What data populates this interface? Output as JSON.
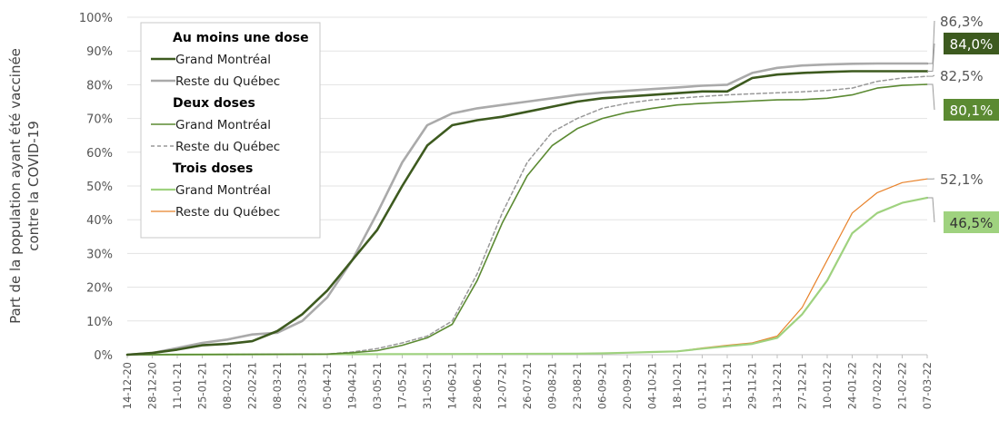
{
  "chart_data": {
    "type": "line",
    "ylabel_lines": [
      "Part de la population ayant été vaccinée",
      "contre la COVID-19"
    ],
    "yticks": [
      "0%",
      "10%",
      "20%",
      "30%",
      "40%",
      "50%",
      "60%",
      "70%",
      "80%",
      "90%",
      "100%"
    ],
    "ylim": [
      0,
      100
    ],
    "x_labels": [
      "14-12-20",
      "28-12-20",
      "11-01-21",
      "25-01-21",
      "08-02-21",
      "22-02-21",
      "08-03-21",
      "22-03-21",
      "05-04-21",
      "19-04-21",
      "03-05-21",
      "17-05-21",
      "31-05-21",
      "14-06-21",
      "28-06-21",
      "12-07-21",
      "26-07-21",
      "09-08-21",
      "23-08-21",
      "06-09-21",
      "20-09-21",
      "04-10-21",
      "18-10-21",
      "01-11-21",
      "15-11-21",
      "29-11-21",
      "13-12-21",
      "27-12-21",
      "10-01-22",
      "24-01-22",
      "07-02-22",
      "21-02-22",
      "07-03-22"
    ],
    "grid": true,
    "legend": {
      "groups": [
        {
          "title": "Au moins une dose",
          "items": [
            {
              "label": "Grand Montréal",
              "series": 0
            },
            {
              "label": "Reste du Québec",
              "series": 1
            }
          ]
        },
        {
          "title": "Deux doses",
          "items": [
            {
              "label": "Grand Montréal",
              "series": 2
            },
            {
              "label": "Reste du Québec",
              "series": 3
            }
          ]
        },
        {
          "title": "Trois doses",
          "items": [
            {
              "label": "Grand Montréal",
              "series": 4
            },
            {
              "label": "Reste du Québec",
              "series": 5
            }
          ]
        }
      ]
    },
    "series": [
      {
        "group": "Au moins une dose",
        "region": "Grand Montréal",
        "color": "#3d5a1f",
        "width": 2.6,
        "dash": "",
        "end_label": "84,0%",
        "end_boxed": true,
        "end_text_color": "#ffffff",
        "points": [
          [
            0,
            0
          ],
          [
            1,
            0.5
          ],
          [
            2,
            1.5
          ],
          [
            3,
            2.8
          ],
          [
            4,
            3.2
          ],
          [
            5,
            4
          ],
          [
            6,
            7
          ],
          [
            7,
            12
          ],
          [
            8,
            19
          ],
          [
            9,
            28
          ],
          [
            10,
            37
          ],
          [
            11,
            50
          ],
          [
            12,
            62
          ],
          [
            13,
            68
          ],
          [
            14,
            69.5
          ],
          [
            15,
            70.5
          ],
          [
            16,
            72
          ],
          [
            17,
            73.5
          ],
          [
            18,
            75
          ],
          [
            19,
            76
          ],
          [
            20,
            76.5
          ],
          [
            21,
            77
          ],
          [
            22,
            77.5
          ],
          [
            23,
            78
          ],
          [
            24,
            78
          ],
          [
            25,
            82
          ],
          [
            26,
            83
          ],
          [
            27,
            83.5
          ],
          [
            28,
            83.8
          ],
          [
            29,
            84
          ],
          [
            30,
            84
          ],
          [
            31,
            84
          ],
          [
            32,
            84
          ]
        ]
      },
      {
        "group": "Au moins une dose",
        "region": "Reste du Québec",
        "color": "#aaaaaa",
        "width": 2.6,
        "dash": "",
        "end_label": "86,3%",
        "end_boxed": false,
        "end_text_color": "#555555",
        "points": [
          [
            0,
            0
          ],
          [
            1,
            0.5
          ],
          [
            2,
            2
          ],
          [
            3,
            3.5
          ],
          [
            4,
            4.5
          ],
          [
            5,
            6
          ],
          [
            6,
            6.5
          ],
          [
            7,
            10
          ],
          [
            8,
            17
          ],
          [
            9,
            28
          ],
          [
            10,
            42
          ],
          [
            11,
            57
          ],
          [
            12,
            68
          ],
          [
            13,
            71.5
          ],
          [
            14,
            73
          ],
          [
            15,
            74
          ],
          [
            16,
            75
          ],
          [
            17,
            76
          ],
          [
            18,
            77
          ],
          [
            19,
            77.7
          ],
          [
            20,
            78.2
          ],
          [
            21,
            78.7
          ],
          [
            22,
            79.2
          ],
          [
            23,
            79.7
          ],
          [
            24,
            80
          ],
          [
            25,
            83.5
          ],
          [
            26,
            85
          ],
          [
            27,
            85.7
          ],
          [
            28,
            86
          ],
          [
            29,
            86.2
          ],
          [
            30,
            86.3
          ],
          [
            31,
            86.3
          ],
          [
            32,
            86.3
          ]
        ]
      },
      {
        "group": "Deux doses",
        "region": "Grand Montréal",
        "color": "#5b8a32",
        "width": 1.6,
        "dash": "",
        "end_label": "80,1%",
        "end_boxed": true,
        "end_text_color": "#ffffff",
        "points": [
          [
            0,
            0
          ],
          [
            8,
            0.2
          ],
          [
            9,
            0.6
          ],
          [
            10,
            1.2
          ],
          [
            11,
            2.8
          ],
          [
            12,
            5
          ],
          [
            13,
            9
          ],
          [
            14,
            22
          ],
          [
            15,
            39
          ],
          [
            16,
            53
          ],
          [
            17,
            62
          ],
          [
            18,
            67
          ],
          [
            19,
            70
          ],
          [
            20,
            71.8
          ],
          [
            21,
            73
          ],
          [
            22,
            74
          ],
          [
            23,
            74.5
          ],
          [
            24,
            74.8
          ],
          [
            25,
            75.2
          ],
          [
            26,
            75.5
          ],
          [
            27,
            75.6
          ],
          [
            28,
            76
          ],
          [
            29,
            77
          ],
          [
            30,
            79
          ],
          [
            31,
            79.8
          ],
          [
            32,
            80.1
          ]
        ]
      },
      {
        "group": "Deux doses",
        "region": "Reste du Québec",
        "color": "#999999",
        "width": 1.5,
        "dash": "4 3",
        "end_label": "82,5%",
        "end_boxed": false,
        "end_text_color": "#555555",
        "points": [
          [
            0,
            0
          ],
          [
            8,
            0.2
          ],
          [
            9,
            0.8
          ],
          [
            10,
            1.8
          ],
          [
            11,
            3.5
          ],
          [
            12,
            5.5
          ],
          [
            13,
            10
          ],
          [
            14,
            24
          ],
          [
            15,
            42
          ],
          [
            16,
            57
          ],
          [
            17,
            66
          ],
          [
            18,
            70
          ],
          [
            19,
            73
          ],
          [
            20,
            74.5
          ],
          [
            21,
            75.5
          ],
          [
            22,
            76
          ],
          [
            23,
            76.5
          ],
          [
            24,
            77
          ],
          [
            25,
            77.3
          ],
          [
            26,
            77.6
          ],
          [
            27,
            77.9
          ],
          [
            28,
            78.3
          ],
          [
            29,
            79
          ],
          [
            30,
            81
          ],
          [
            31,
            82
          ],
          [
            32,
            82.5
          ]
        ]
      },
      {
        "group": "Trois doses",
        "region": "Grand Montréal",
        "color": "#9fd27f",
        "width": 2.2,
        "dash": "",
        "end_label": "46,5%",
        "end_boxed": true,
        "end_text_color": "#333333",
        "points": [
          [
            0,
            0
          ],
          [
            18,
            0.3
          ],
          [
            19,
            0.4
          ],
          [
            20,
            0.6
          ],
          [
            21,
            0.8
          ],
          [
            22,
            1
          ],
          [
            23,
            1.8
          ],
          [
            24,
            2.5
          ],
          [
            25,
            3.2
          ],
          [
            26,
            5
          ],
          [
            27,
            12
          ],
          [
            28,
            22
          ],
          [
            29,
            36
          ],
          [
            30,
            42
          ],
          [
            31,
            45
          ],
          [
            32,
            46.5
          ]
        ]
      },
      {
        "group": "Trois doses",
        "region": "Reste du Québec",
        "color": "#e8822a",
        "width": 1.2,
        "dash": "",
        "end_label": "52,1%",
        "end_boxed": false,
        "end_text_color": "#555555",
        "points": [
          [
            0,
            0
          ],
          [
            18,
            0.3
          ],
          [
            19,
            0.4
          ],
          [
            20,
            0.6
          ],
          [
            21,
            0.8
          ],
          [
            22,
            1
          ],
          [
            23,
            2
          ],
          [
            24,
            2.8
          ],
          [
            25,
            3.5
          ],
          [
            26,
            5.5
          ],
          [
            27,
            14
          ],
          [
            28,
            28
          ],
          [
            29,
            42
          ],
          [
            30,
            48
          ],
          [
            31,
            51
          ],
          [
            32,
            52.1
          ]
        ]
      }
    ]
  }
}
